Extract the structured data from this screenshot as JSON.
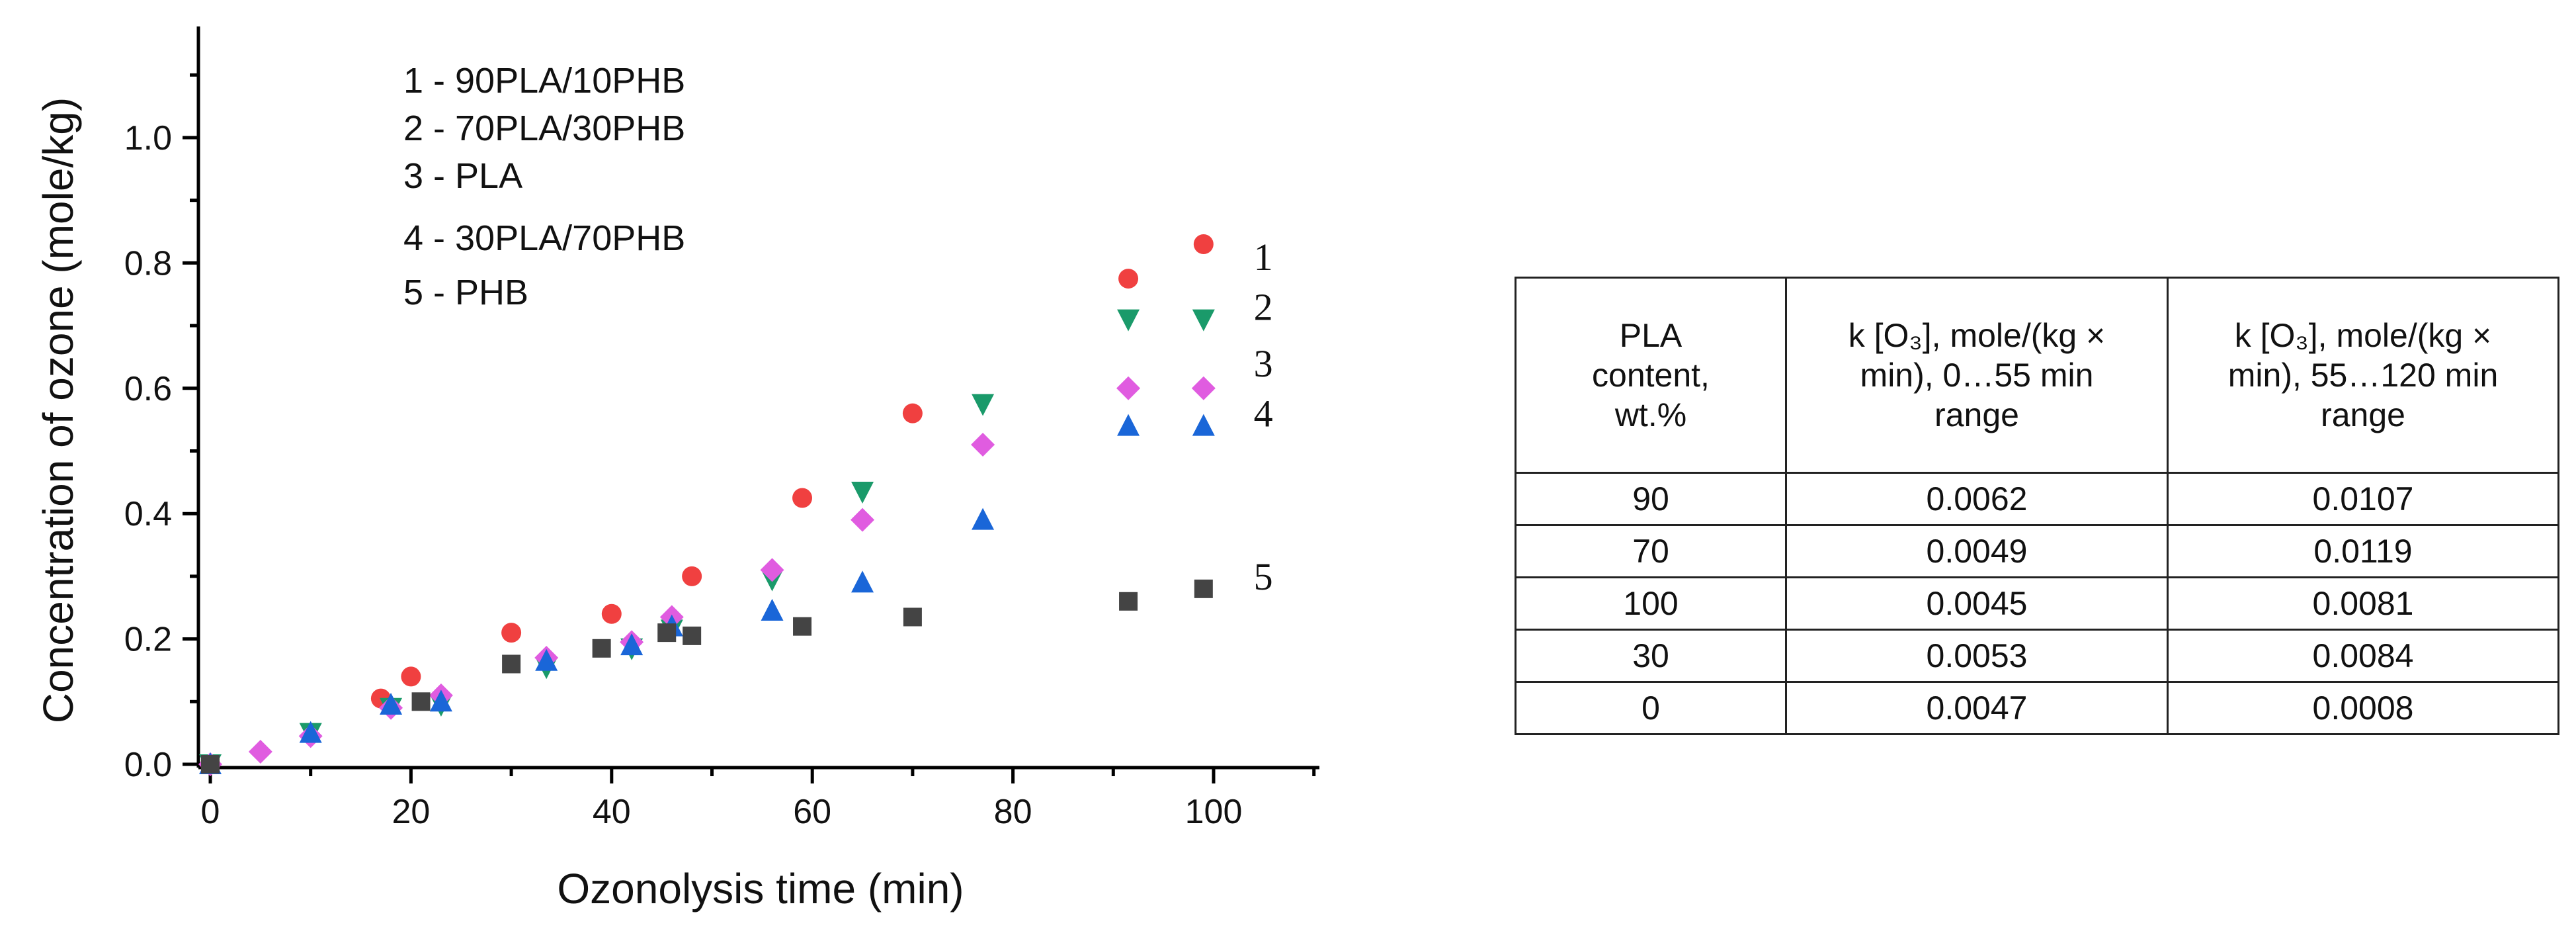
{
  "chart_data": {
    "type": "scatter",
    "title": "",
    "xlabel": "Ozonolysis time (min)",
    "ylabel": "Concentration of ozone (mole/kg)",
    "xlim": [
      -1,
      110
    ],
    "ylim": [
      -0.01,
      1.17
    ],
    "xticks": [
      0,
      20,
      40,
      60,
      80,
      100
    ],
    "xtick_labels": [
      "0",
      "20",
      "40",
      "60",
      "80",
      "100"
    ],
    "yticks": [
      0.0,
      0.2,
      0.4,
      0.6,
      0.8,
      1.0
    ],
    "ytick_labels": [
      "0.0",
      "0.2",
      "0.4",
      "0.6",
      "0.8",
      "1.0"
    ],
    "legend_items": [
      "1 - 90PLA/10PHB",
      "2 - 70PLA/30PHB",
      "3 - PLA",
      "4 - 30PLA/70PHB",
      "5 - PHB"
    ],
    "legend_position": "top-left",
    "series": [
      {
        "name": "1",
        "marker": "circle",
        "color": "#f04040",
        "x": [
          0,
          17,
          20,
          30,
          40,
          48,
          59,
          70,
          91.5
        ],
        "y": [
          0.0,
          0.105,
          0.14,
          0.21,
          0.24,
          0.3,
          0.425,
          0.56,
          0.775
        ],
        "legend_marker": {
          "x": 99,
          "y": 0.83
        }
      },
      {
        "name": "2",
        "marker": "triangle-down",
        "color": "#1a9a6a",
        "x": [
          0,
          10,
          18,
          23,
          33.5,
          42,
          46,
          56,
          65,
          77,
          91.5
        ],
        "y": [
          0.0,
          0.05,
          0.09,
          0.095,
          0.155,
          0.185,
          0.215,
          0.295,
          0.435,
          0.575,
          0.71
        ],
        "legend_marker": {
          "x": 99,
          "y": 0.71
        }
      },
      {
        "name": "3",
        "marker": "diamond",
        "color": "#e05ce0",
        "x": [
          0,
          5,
          10,
          18,
          23,
          33.5,
          42,
          46,
          56,
          65,
          77,
          91.5
        ],
        "y": [
          0.0,
          0.02,
          0.045,
          0.09,
          0.11,
          0.17,
          0.195,
          0.235,
          0.31,
          0.39,
          0.51,
          0.6
        ],
        "legend_marker": {
          "x": 99,
          "y": 0.6
        }
      },
      {
        "name": "4",
        "marker": "triangle-up",
        "color": "#1a66d8",
        "x": [
          0,
          10,
          18,
          23,
          33.5,
          42,
          46,
          56,
          65,
          77,
          91.5
        ],
        "y": [
          0.0,
          0.05,
          0.095,
          0.1,
          0.165,
          0.19,
          0.22,
          0.245,
          0.29,
          0.39,
          0.54
        ],
        "legend_marker": {
          "x": 99,
          "y": 0.54
        }
      },
      {
        "name": "5",
        "marker": "square",
        "color": "#444444",
        "x": [
          0,
          21,
          30,
          39,
          45.5,
          48,
          59,
          70,
          91.5
        ],
        "y": [
          0.0,
          0.1,
          0.16,
          0.185,
          0.21,
          0.205,
          0.22,
          0.235,
          0.26
        ],
        "legend_marker": {
          "x": 99,
          "y": 0.28
        }
      }
    ],
    "curve_labels": [
      {
        "text": "1",
        "x": 104,
        "y": 0.81
      },
      {
        "text": "2",
        "x": 104,
        "y": 0.73
      },
      {
        "text": "3",
        "x": 104,
        "y": 0.64
      },
      {
        "text": "4",
        "x": 104,
        "y": 0.56
      },
      {
        "text": "5",
        "x": 104,
        "y": 0.3
      }
    ]
  },
  "table": {
    "headers": [
      [
        "PLA",
        "content,",
        "wt.%"
      ],
      [
        "k [O₃], mole/(kg ×",
        "min), 0…55 min",
        "range"
      ],
      [
        "k [O₃], mole/(kg ×",
        "min), 55…120 min",
        "range"
      ]
    ],
    "rows": [
      [
        "90",
        "0.0062",
        "0.0107"
      ],
      [
        "70",
        "0.0049",
        "0.0119"
      ],
      [
        "100",
        "0.0045",
        "0.0081"
      ],
      [
        "30",
        "0.0053",
        "0.0084"
      ],
      [
        "0",
        "0.0047",
        "0.0008"
      ]
    ]
  }
}
